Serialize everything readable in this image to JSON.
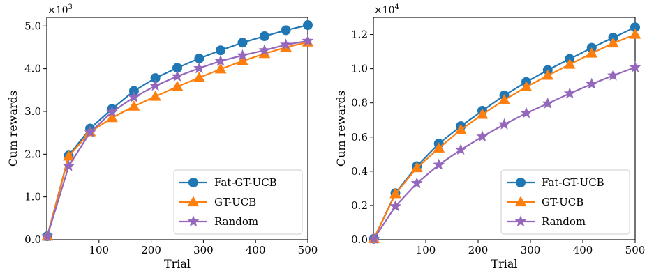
{
  "chart_data": [
    {
      "type": "line",
      "xlabel": "Trial",
      "ylabel": "Cum rewards",
      "multiplier_base": "×10",
      "multiplier_exp": "3",
      "xlim": [
        0,
        500
      ],
      "ylim": [
        0,
        5200
      ],
      "x": [
        1,
        42,
        83,
        125,
        167,
        208,
        250,
        292,
        333,
        375,
        417,
        458,
        500
      ],
      "xticks": [
        100,
        200,
        300,
        400,
        500
      ],
      "xtick_labels": [
        "100",
        "200",
        "300",
        "400",
        "500"
      ],
      "yticks": [
        0,
        1000,
        2000,
        3000,
        4000,
        5000
      ],
      "ytick_labels": [
        "0.0",
        "1.0",
        "2.0",
        "3.0",
        "4.0",
        "5.0"
      ],
      "legend_position": "bottom-right",
      "series": [
        {
          "name": "Fat-GT-UCB",
          "color": "#1f77b4",
          "marker": "circle",
          "values": [
            80,
            1970,
            2600,
            3060,
            3480,
            3780,
            4020,
            4240,
            4430,
            4610,
            4760,
            4900,
            5020
          ]
        },
        {
          "name": "GT-UCB",
          "color": "#ff7f0e",
          "marker": "triangle",
          "values": [
            80,
            1950,
            2520,
            2850,
            3120,
            3350,
            3580,
            3790,
            3990,
            4180,
            4350,
            4500,
            4620
          ]
        },
        {
          "name": "Random",
          "color": "#9467bd",
          "marker": "star",
          "values": [
            80,
            1720,
            2510,
            2990,
            3330,
            3600,
            3820,
            4010,
            4180,
            4310,
            4430,
            4560,
            4650
          ]
        }
      ]
    },
    {
      "type": "line",
      "xlabel": "Trial",
      "ylabel": "Cum rewards",
      "multiplier_base": "×10",
      "multiplier_exp": "4",
      "xlim": [
        0,
        500
      ],
      "ylim": [
        0,
        13000
      ],
      "x": [
        1,
        42,
        83,
        125,
        167,
        208,
        250,
        292,
        333,
        375,
        417,
        458,
        500
      ],
      "xticks": [
        100,
        200,
        300,
        400,
        500
      ],
      "xtick_labels": [
        "100",
        "200",
        "300",
        "400",
        "500"
      ],
      "yticks": [
        0,
        2000,
        4000,
        6000,
        8000,
        10000,
        12000
      ],
      "ytick_labels": [
        "0.0",
        "0.2",
        "0.4",
        "0.6",
        "0.8",
        "1.0",
        "1.2"
      ],
      "legend_position": "bottom-right",
      "series": [
        {
          "name": "Fat-GT-UCB",
          "color": "#1f77b4",
          "marker": "circle",
          "values": [
            50,
            2720,
            4300,
            5620,
            6640,
            7540,
            8440,
            9220,
            9920,
            10570,
            11220,
            11820,
            12420
          ]
        },
        {
          "name": "GT-UCB",
          "color": "#ff7f0e",
          "marker": "triangle",
          "values": [
            50,
            2680,
            4200,
            5350,
            6430,
            7320,
            8170,
            8930,
            9600,
            10250,
            10900,
            11490,
            12000
          ]
        },
        {
          "name": "Random",
          "color": "#9467bd",
          "marker": "star",
          "values": [
            50,
            1950,
            3300,
            4380,
            5260,
            6030,
            6740,
            7400,
            7960,
            8550,
            9100,
            9600,
            10080
          ]
        }
      ]
    }
  ]
}
